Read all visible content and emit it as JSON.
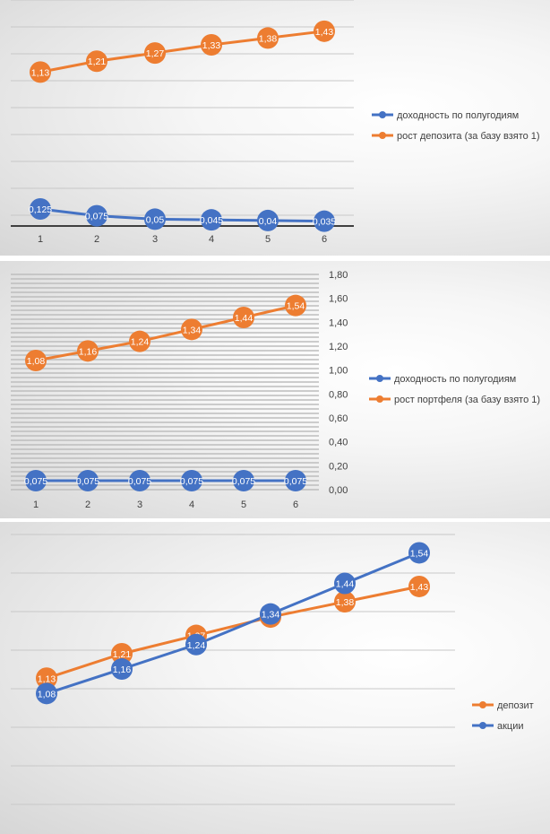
{
  "chart_data": [
    {
      "type": "line",
      "categories": [
        "1",
        "2",
        "3",
        "4",
        "5",
        "6"
      ],
      "series": [
        {
          "name": "доходность по полугодиям",
          "values": [
            0.125,
            0.075,
            0.05,
            0.045,
            0.04,
            0.035
          ],
          "labels": [
            "0,125",
            "0,075",
            "0,05",
            "0,045",
            "0,04",
            "0,035"
          ],
          "color": "#4472C4"
        },
        {
          "name": "рост депозита (за базу взято 1)",
          "values": [
            1.13,
            1.21,
            1.27,
            1.33,
            1.38,
            1.43
          ],
          "labels": [
            "1,13",
            "1,21",
            "1,27",
            "1,33",
            "1,38",
            "1,43"
          ],
          "color": "#ED7D31"
        }
      ],
      "ylim": [
        0,
        1.6
      ],
      "grid": true,
      "legend": "right"
    },
    {
      "type": "line",
      "categories": [
        "1",
        "2",
        "3",
        "4",
        "5",
        "6"
      ],
      "series": [
        {
          "name": "доходность по полугодиям",
          "values": [
            0.075,
            0.075,
            0.075,
            0.075,
            0.075,
            0.075
          ],
          "labels": [
            "0,075",
            "0,075",
            "0,075",
            "0,075",
            "0,075",
            "0,075"
          ],
          "color": "#4472C4"
        },
        {
          "name": "рост портфеля (за базу взято 1)",
          "values": [
            1.08,
            1.16,
            1.24,
            1.34,
            1.44,
            1.54
          ],
          "labels": [
            "1,08",
            "1,16",
            "1,24",
            "1,34",
            "1,44",
            "1,54"
          ],
          "color": "#ED7D31"
        }
      ],
      "ylim": [
        0,
        1.8
      ],
      "yticks": [
        "0,00",
        "0,20",
        "0,40",
        "0,60",
        "0,80",
        "1,00",
        "1,20",
        "1,40",
        "1,60",
        "1,80"
      ],
      "grid": true,
      "legend": "right"
    },
    {
      "type": "line",
      "categories": [
        "1",
        "2",
        "3",
        "4",
        "5",
        "6"
      ],
      "series": [
        {
          "name": "депозит",
          "values": [
            1.13,
            1.21,
            1.27,
            1.33,
            1.38,
            1.43
          ],
          "labels": [
            "1,13",
            "1,21",
            "1,27",
            "1,33",
            "1,38",
            "1,43"
          ],
          "color": "#ED7D31"
        },
        {
          "name": "акции",
          "values": [
            1.08,
            1.16,
            1.24,
            1.34,
            1.44,
            1.54
          ],
          "labels": [
            "1,08",
            "1,16",
            "1,24",
            "1,34",
            "1,44",
            "1,54"
          ],
          "color": "#4472C4"
        }
      ],
      "ylim": [
        0.6,
        1.6
      ],
      "grid": true,
      "legend": "right"
    }
  ]
}
